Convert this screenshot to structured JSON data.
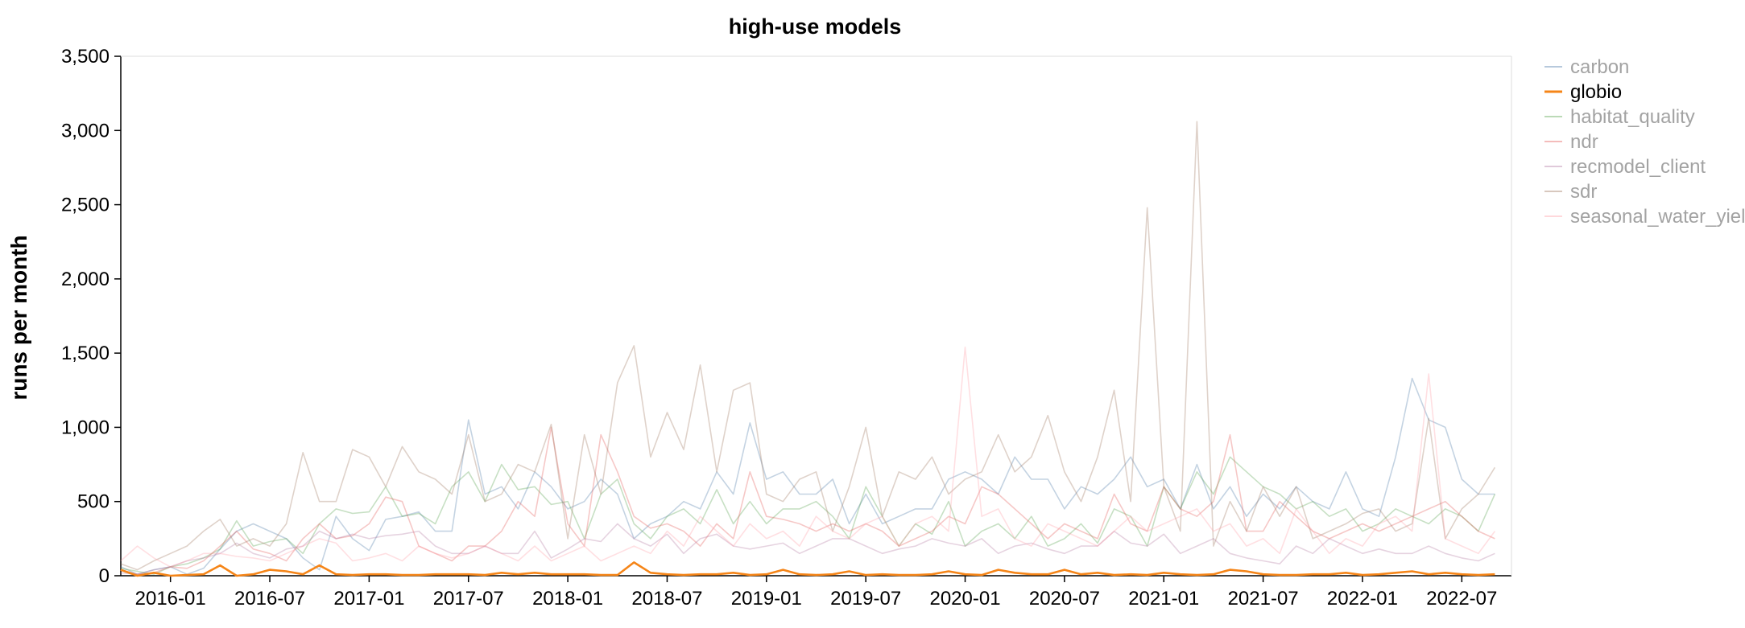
{
  "chart_data": {
    "type": "line",
    "title": "high-use models",
    "xlabel": "",
    "ylabel": "runs per month",
    "ylim": [
      0,
      3500
    ],
    "yticks": [
      0,
      500,
      1000,
      1500,
      2000,
      2500,
      3000,
      3500
    ],
    "ytick_labels": [
      "0",
      "500",
      "1,000",
      "1,500",
      "2,000",
      "2,500",
      "3,000",
      "3,500"
    ],
    "xticks": [
      "2016-01",
      "2016-07",
      "2017-01",
      "2017-07",
      "2018-01",
      "2018-07",
      "2019-01",
      "2019-07",
      "2020-01",
      "2020-07",
      "2021-01",
      "2021-07",
      "2022-01",
      "2022-07"
    ],
    "x_start": "2015-10",
    "x_end": "2022-10",
    "grid": false,
    "legend_position": "top-right",
    "highlighted_series": "globio",
    "series": [
      {
        "name": "carbon",
        "color": "#4c78a8",
        "values": [
          60,
          10,
          40,
          60,
          10,
          50,
          180,
          300,
          350,
          300,
          250,
          120,
          40,
          400,
          250,
          170,
          380,
          400,
          430,
          300,
          300,
          1050,
          550,
          600,
          450,
          700,
          600,
          450,
          500,
          650,
          550,
          250,
          350,
          400,
          500,
          450,
          700,
          550,
          1030,
          650,
          700,
          550,
          550,
          650,
          350,
          550,
          350,
          400,
          450,
          450,
          650,
          700,
          650,
          550,
          800,
          650,
          650,
          450,
          600,
          550,
          650,
          800,
          600,
          650,
          450,
          750,
          450,
          600,
          400,
          550,
          450,
          600,
          500,
          450,
          700,
          450,
          400,
          800,
          1330,
          1050,
          1000,
          650,
          550,
          550
        ]
      },
      {
        "name": "globio",
        "color": "#f58518",
        "values": [
          40,
          0,
          20,
          0,
          5,
          10,
          70,
          0,
          10,
          40,
          30,
          10,
          70,
          10,
          5,
          10,
          10,
          5,
          5,
          10,
          10,
          10,
          5,
          20,
          10,
          20,
          10,
          10,
          10,
          5,
          5,
          90,
          20,
          10,
          5,
          10,
          10,
          20,
          5,
          10,
          40,
          10,
          5,
          10,
          30,
          5,
          10,
          5,
          5,
          10,
          30,
          10,
          5,
          40,
          20,
          10,
          10,
          40,
          10,
          20,
          5,
          10,
          5,
          20,
          10,
          5,
          10,
          40,
          30,
          10,
          5,
          5,
          10,
          10,
          20,
          5,
          10,
          20,
          30,
          10,
          20,
          10,
          5,
          10
        ]
      },
      {
        "name": "habitat_quality",
        "color": "#54a24b",
        "values": [
          50,
          30,
          10,
          60,
          80,
          120,
          180,
          370,
          200,
          230,
          250,
          150,
          350,
          450,
          420,
          430,
          600,
          400,
          420,
          350,
          600,
          700,
          500,
          750,
          580,
          600,
          480,
          500,
          250,
          550,
          650,
          350,
          250,
          400,
          450,
          350,
          580,
          350,
          500,
          350,
          450,
          450,
          500,
          400,
          250,
          600,
          400,
          200,
          350,
          280,
          500,
          200,
          300,
          350,
          250,
          400,
          200,
          250,
          350,
          220,
          450,
          400,
          200,
          600,
          450,
          700,
          550,
          800,
          700,
          600,
          550,
          450,
          500,
          400,
          450,
          300,
          350,
          450,
          400,
          350,
          450,
          400,
          300,
          550
        ]
      },
      {
        "name": "ndr",
        "color": "#e45756",
        "values": [
          40,
          10,
          20,
          60,
          50,
          100,
          200,
          300,
          180,
          150,
          100,
          250,
          350,
          250,
          270,
          350,
          530,
          500,
          200,
          150,
          100,
          200,
          200,
          300,
          500,
          400,
          1000,
          350,
          200,
          950,
          700,
          400,
          320,
          350,
          300,
          200,
          350,
          250,
          700,
          400,
          380,
          350,
          300,
          350,
          300,
          350,
          300,
          200,
          250,
          300,
          400,
          350,
          600,
          550,
          450,
          350,
          250,
          350,
          300,
          250,
          550,
          350,
          300,
          600,
          450,
          400,
          500,
          950,
          300,
          300,
          500,
          400,
          300,
          250,
          300,
          350,
          300,
          350,
          400,
          450,
          500,
          400,
          300,
          250
        ]
      },
      {
        "name": "recmodel_client",
        "color": "#b279a2",
        "values": [
          20,
          10,
          40,
          60,
          100,
          120,
          150,
          220,
          150,
          120,
          180,
          200,
          300,
          250,
          280,
          250,
          270,
          280,
          300,
          200,
          150,
          150,
          200,
          150,
          150,
          300,
          120,
          180,
          250,
          230,
          350,
          250,
          200,
          280,
          150,
          250,
          280,
          200,
          180,
          200,
          220,
          150,
          200,
          250,
          250,
          200,
          150,
          180,
          200,
          250,
          220,
          200,
          250,
          150,
          200,
          220,
          180,
          150,
          200,
          200,
          300,
          220,
          200,
          280,
          150,
          200,
          250,
          150,
          120,
          100,
          80,
          200,
          150,
          250,
          200,
          150,
          180,
          150,
          150,
          200,
          150,
          120,
          100,
          150
        ]
      },
      {
        "name": "sdr",
        "color": "#9d755d",
        "values": [
          80,
          40,
          100,
          150,
          200,
          300,
          380,
          200,
          250,
          200,
          350,
          830,
          500,
          500,
          850,
          800,
          600,
          870,
          700,
          650,
          550,
          950,
          500,
          550,
          750,
          700,
          1020,
          250,
          950,
          550,
          1300,
          1550,
          800,
          1100,
          850,
          1420,
          700,
          1250,
          1300,
          550,
          500,
          650,
          700,
          300,
          600,
          1000,
          400,
          700,
          650,
          800,
          550,
          650,
          700,
          950,
          700,
          800,
          1080,
          700,
          500,
          800,
          1250,
          500,
          2480,
          600,
          300,
          3060,
          200,
          500,
          300,
          600,
          400,
          600,
          250,
          300,
          350,
          420,
          450,
          300,
          350,
          1060,
          250,
          450,
          550,
          730
        ]
      },
      {
        "name": "seasonal_water_yield",
        "color": "#ff9da6",
        "values": [
          100,
          200,
          120,
          60,
          100,
          150,
          150,
          130,
          120,
          100,
          150,
          200,
          250,
          220,
          100,
          120,
          150,
          100,
          200,
          150,
          120,
          150,
          200,
          150,
          100,
          200,
          100,
          150,
          200,
          100,
          150,
          200,
          150,
          300,
          200,
          400,
          300,
          200,
          350,
          250,
          300,
          200,
          400,
          300,
          250,
          350,
          400,
          200,
          350,
          400,
          300,
          1540,
          400,
          450,
          250,
          200,
          350,
          300,
          250,
          200,
          300,
          400,
          300,
          350,
          400,
          450,
          300,
          350,
          200,
          250,
          150,
          450,
          300,
          150,
          250,
          200,
          350,
          400,
          300,
          1360,
          250,
          200,
          150,
          300
        ]
      }
    ]
  }
}
